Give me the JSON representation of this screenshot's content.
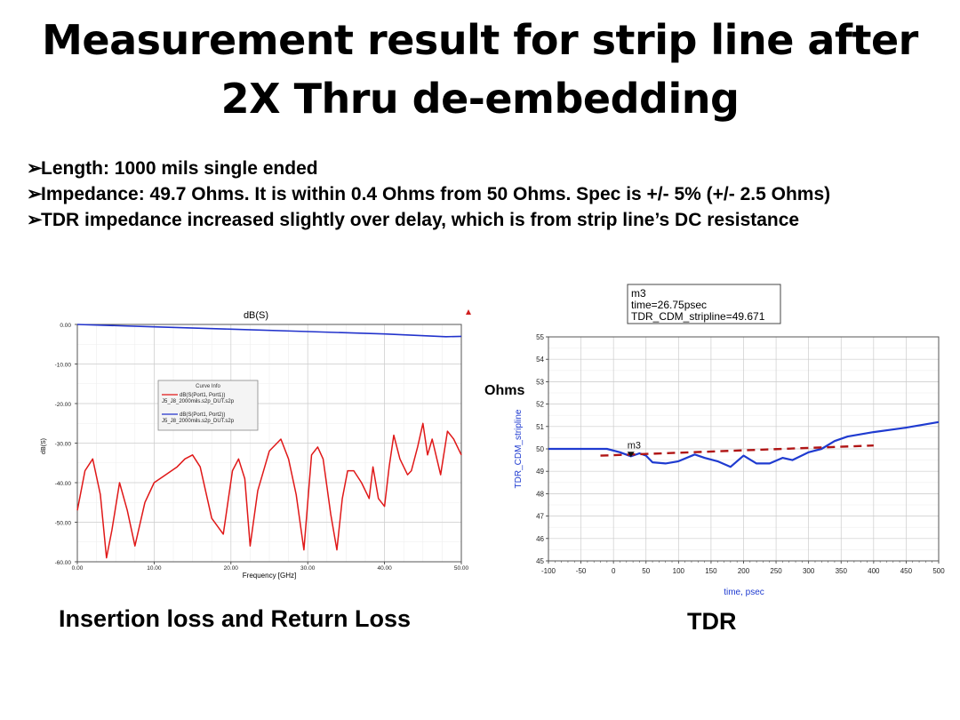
{
  "title": {
    "line1": "Measurement result for strip line after",
    "line2": "2X Thru de-embedding"
  },
  "bullets": [
    "Length: 1000 mils single ended",
    "Impedance: 49.7 Ohms. It is within 0.4 Ohms from 50 Ohms. Spec is +/- 5% (+/- 2.5 Ohms)",
    "TDR impedance increased slightly over delay, which is from strip line’s DC resistance"
  ],
  "captions": {
    "left": "Insertion loss and Return Loss",
    "right": "TDR"
  },
  "colors": {
    "s21": "#2233cc",
    "s11": "#e01818",
    "tdr": "#1f3bd0",
    "trend": "#b01515"
  },
  "chart_data": [
    {
      "type": "line",
      "title": "dB(S)",
      "xlabel": "Frequency [GHz]",
      "ylabel": "dB(S)",
      "xlim": [
        0,
        50
      ],
      "ylim": [
        -60,
        0
      ],
      "xticks": [
        "0.00",
        "10.00",
        "20.00",
        "30.00",
        "40.00",
        "50.00"
      ],
      "yticks": [
        "0.00",
        "-10.00",
        "-20.00",
        "-30.00",
        "-40.00",
        "-50.00",
        "-60.00"
      ],
      "grid": true,
      "legend": {
        "title": "Curve Info",
        "entries": [
          {
            "name": "dB(S(Port1, Port1))",
            "file": "J5_J8_2000mils.s2p_DUT.s2p"
          },
          {
            "name": "dB(S(Port1, Port2))",
            "file": "J5_J8_2000mils.s2p_DUT.s2p"
          }
        ]
      },
      "series": [
        {
          "name": "dB(S(Port1, Port2))",
          "x": [
            0,
            10,
            20,
            30,
            40,
            48,
            50
          ],
          "y": [
            0,
            -0.6,
            -1.2,
            -1.8,
            -2.4,
            -3.1,
            -3.0
          ]
        },
        {
          "name": "dB(S(Port1, Port1))",
          "x": [
            0,
            1,
            2,
            3,
            3.8,
            4.5,
            5.5,
            6.5,
            7.5,
            8.8,
            10,
            11.5,
            13,
            14,
            15,
            16,
            17.5,
            19,
            20.2,
            21,
            21.8,
            22.5,
            23.5,
            25,
            26.5,
            27.5,
            28.5,
            29.5,
            30.5,
            31.3,
            32,
            33,
            33.8,
            34.5,
            35.2,
            36,
            37,
            38,
            38.5,
            39.2,
            40,
            40.6,
            41.2,
            42,
            43,
            43.5,
            44.3,
            45,
            45.6,
            46.2,
            47.3,
            48.2,
            49,
            50
          ],
          "y": [
            -47,
            -37,
            -34,
            -43,
            -59,
            -52,
            -40,
            -47,
            -56,
            -45,
            -40,
            -38,
            -36,
            -34,
            -33,
            -36,
            -49,
            -53,
            -37,
            -34,
            -39,
            -56,
            -42,
            -32,
            -29,
            -34,
            -43,
            -57,
            -33,
            -31,
            -34,
            -48,
            -57,
            -44,
            -37,
            -37,
            -40,
            -44,
            -36,
            -44,
            -46,
            -36,
            -28,
            -34,
            -38,
            -37,
            -31,
            -25,
            -33,
            -29,
            -38,
            -27,
            -29,
            -33
          ]
        }
      ]
    },
    {
      "type": "line",
      "title": "",
      "xlabel": "time, psec",
      "ylabel": "TDR_CDM_stripline",
      "unit_label": "Ohms",
      "xlim": [
        -100,
        500
      ],
      "ylim": [
        45,
        55
      ],
      "xticks": [
        "-100",
        "-50",
        "0",
        "50",
        "100",
        "150",
        "200",
        "250",
        "300",
        "350",
        "400",
        "450",
        "500"
      ],
      "yticks": [
        "45",
        "46",
        "47",
        "48",
        "49",
        "50",
        "51",
        "52",
        "53",
        "54",
        "55"
      ],
      "grid": true,
      "marker": {
        "name": "m3",
        "info": [
          "m3",
          "time=26.75psec",
          "TDR_CDM_stripline=49.671"
        ],
        "x": 26.75,
        "y": 49.671
      },
      "series": [
        {
          "name": "TDR_CDM_stripline",
          "x": [
            -100,
            -50,
            -10,
            10,
            26.75,
            40,
            50,
            60,
            80,
            100,
            125,
            140,
            160,
            180,
            200,
            220,
            240,
            260,
            275,
            300,
            320,
            340,
            360,
            400,
            450,
            480,
            500
          ],
          "y": [
            50.0,
            50.0,
            50.0,
            49.85,
            49.67,
            49.8,
            49.7,
            49.4,
            49.35,
            49.45,
            49.75,
            49.6,
            49.45,
            49.2,
            49.7,
            49.35,
            49.35,
            49.6,
            49.5,
            49.85,
            50.0,
            50.35,
            50.55,
            50.75,
            50.95,
            51.1,
            51.2
          ]
        },
        {
          "name": "trend",
          "x": [
            -20,
            400
          ],
          "y": [
            49.7,
            50.15
          ]
        }
      ]
    }
  ]
}
